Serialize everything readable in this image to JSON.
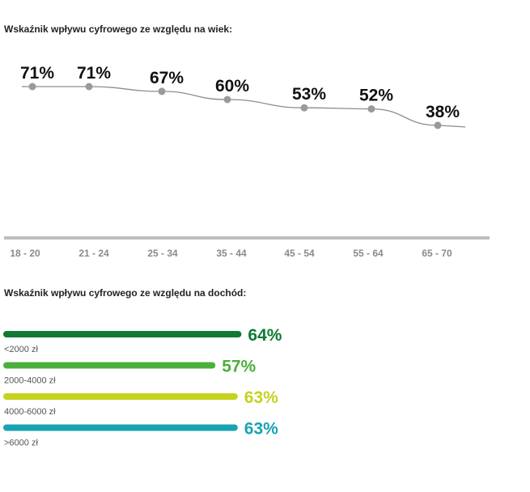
{
  "chart_data": [
    {
      "type": "line",
      "title": "Wskaźnik wpływu cyfrowego ze względu na wiek:",
      "categories": [
        "18 - 20",
        "21 - 24",
        "25 - 34",
        "35 - 44",
        "45 - 54",
        "55 - 64",
        "65 - 70"
      ],
      "values": [
        71,
        71,
        67,
        60,
        53,
        52,
        38
      ],
      "value_labels": [
        "71%",
        "71%",
        "67%",
        "60%",
        "53%",
        "52%",
        "38%"
      ],
      "line_color": "#8c8c8c",
      "marker_color": "#9a9a9a",
      "axis_color": "#bdbdbd",
      "legend": "none",
      "grid": false
    },
    {
      "type": "bar",
      "orientation": "horizontal",
      "title": "Wskaźnik wpływu cyfrowego ze względu na dochód:",
      "categories": [
        "<2000 zł",
        "2000-4000 zł",
        "4000-6000 zł",
        ">6000 zł"
      ],
      "values": [
        64,
        57,
        63,
        63
      ],
      "value_labels": [
        "64%",
        "57%",
        "63%",
        "63%"
      ],
      "colors": [
        "#0f7a34",
        "#4caf3c",
        "#c5d21e",
        "#18a3b4"
      ],
      "label_colors": [
        "#0f7a34",
        "#4caf3c",
        "#c5d21e",
        "#18a3b4"
      ],
      "legend": "none",
      "grid": false
    }
  ]
}
